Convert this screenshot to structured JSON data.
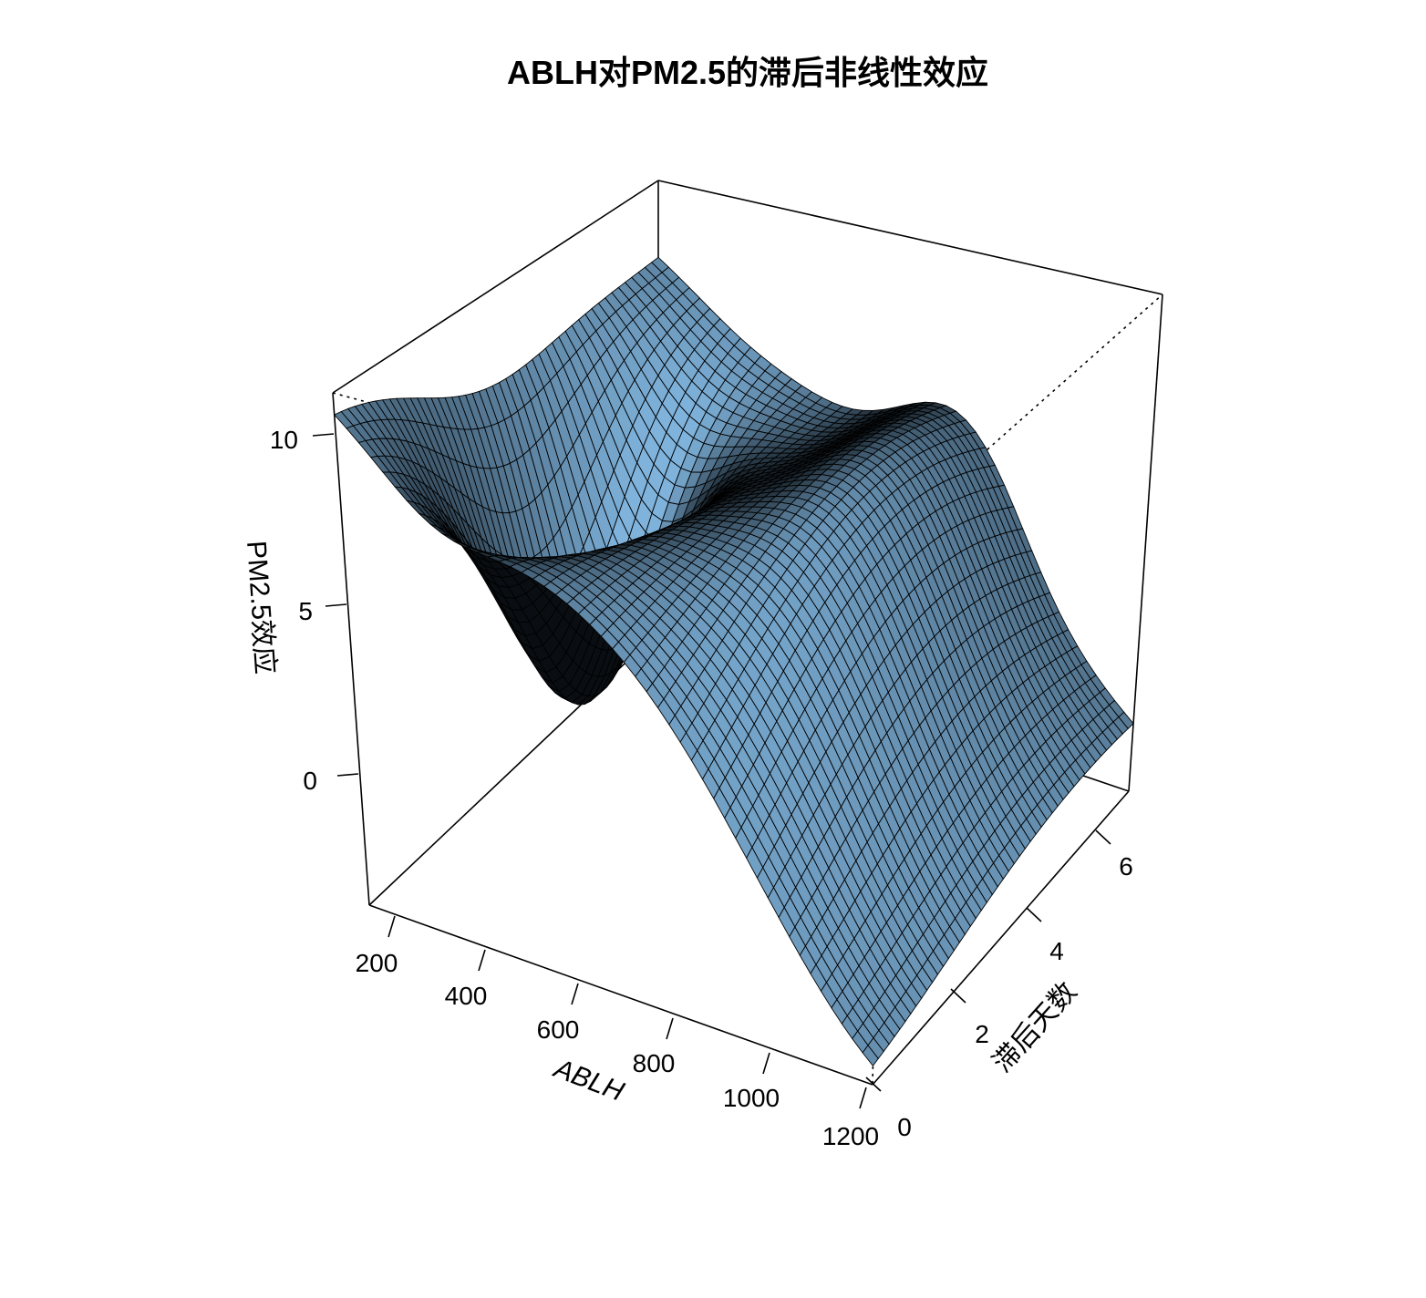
{
  "chart_data": {
    "type": "surface3d",
    "title": "ABLH对PM2.5的滞后非线性效应",
    "xlabel": "ABLH",
    "ylabel": "滞后天数",
    "zlabel": "PM2.5效应",
    "xlim": [
      100,
      1250
    ],
    "ylim": [
      0,
      7
    ],
    "zlim": [
      -3.5,
      11.5
    ],
    "x_ticks": [
      "200",
      "400",
      "600",
      "800",
      "1000",
      "1200"
    ],
    "y_ticks": [
      "0",
      "2",
      "4",
      "6"
    ],
    "z_ticks": [
      "10",
      "5",
      "0"
    ],
    "surface_color": "#7fb3dc",
    "grid": {
      "x": [
        100,
        1250
      ],
      "y": [
        0,
        7
      ],
      "nx": 48,
      "ny": 48
    },
    "corner_values": {
      "at_xmin_ymin": 11.0,
      "at_xmin_ymax": 9.0,
      "at_xmax_ymin": -3.0,
      "at_xmax_ymax": 1.5
    }
  }
}
